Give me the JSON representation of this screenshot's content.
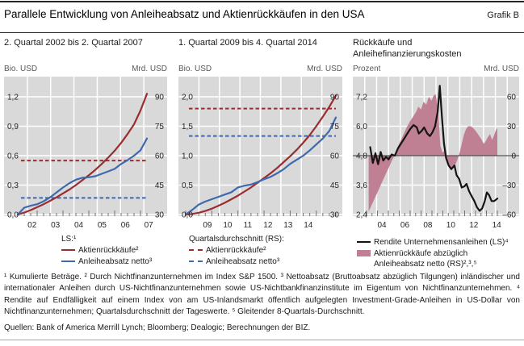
{
  "header": {
    "title": "Parallele Entwicklung von Anleiheabsatz und Aktienrückkäufen in den USA",
    "tag": "Grafik B"
  },
  "colors": {
    "red_line": "#9a2d30",
    "blue_line": "#3e69ad",
    "black_line": "#141414",
    "pink_area": "#c08094",
    "plot_bg": "#d9d9d9",
    "grid": "#ffffff",
    "zero_line": "#4d4d4d",
    "tick_mark": "#737373",
    "tick_text": "#262626"
  },
  "chart_data": [
    {
      "type": "line",
      "subtitle": "2. Quartal 2002 bis 2. Quartal 2007",
      "left_axis": {
        "unit": "Bio. USD",
        "tick_labels": [
          "1,2",
          "0,9",
          "0,6",
          "0,3",
          "0,0"
        ],
        "range": [
          0,
          1.2
        ]
      },
      "right_axis": {
        "unit": "Mrd. USD",
        "tick_labels": [
          "90",
          "75",
          "60",
          "45",
          "30"
        ],
        "range": [
          30,
          90
        ]
      },
      "x_labels": [
        "02",
        "03",
        "04",
        "05",
        "06",
        "07"
      ],
      "x_domain": [
        2002.25,
        2007.25
      ],
      "series": [
        {
          "name": "Aktienrückkäufe (LS, kumuliert)",
          "kind": "line",
          "axis": "left",
          "color": "red_line",
          "x_start": 2002.25,
          "x_step": 0.25,
          "values": [
            0.0,
            0.02,
            0.045,
            0.075,
            0.105,
            0.14,
            0.175,
            0.215,
            0.255,
            0.3,
            0.35,
            0.4,
            0.455,
            0.515,
            0.58,
            0.65,
            0.73,
            0.82,
            0.92,
            1.06,
            1.23
          ]
        },
        {
          "name": "Anleiheabsatz netto (LS, kumuliert)",
          "kind": "line",
          "axis": "left",
          "color": "blue_line",
          "x_start": 2002.25,
          "x_step": 0.25,
          "values": [
            0.0,
            0.07,
            0.09,
            0.105,
            0.135,
            0.175,
            0.225,
            0.275,
            0.32,
            0.355,
            0.375,
            0.38,
            0.39,
            0.415,
            0.44,
            0.465,
            0.515,
            0.555,
            0.6,
            0.655,
            0.775
          ]
        }
      ],
      "avg_lines": [
        {
          "name": "Aktienrückkäufe, Quartalsdurchschnitt (RS)",
          "axis": "right",
          "value": 57.5,
          "color": "red_line"
        },
        {
          "name": "Anleiheabsatz netto, Quartalsdurchschnitt (RS)",
          "axis": "right",
          "value": 38.5,
          "color": "blue_line"
        }
      ]
    },
    {
      "type": "line",
      "subtitle": "1. Quartal 2009 bis 4. Quartal 2014",
      "left_axis": {
        "unit": "Bio. USD",
        "tick_labels": [
          "2,0",
          "1,5",
          "1,0",
          "0,5",
          "0,0"
        ],
        "range": [
          0,
          2.0
        ]
      },
      "right_axis": {
        "unit": "Mrd. USD",
        "tick_labels": [
          "90",
          "75",
          "60",
          "45",
          "30"
        ],
        "range": [
          30,
          90
        ]
      },
      "x_labels": [
        "09",
        "10",
        "11",
        "12",
        "13",
        "14"
      ],
      "x_domain": [
        2009.0,
        2014.75
      ],
      "series": [
        {
          "name": "Aktienrückkäufe (LS, kumuliert)",
          "kind": "line",
          "axis": "left",
          "color": "red_line",
          "x_start": 2009.0,
          "x_step": 0.25,
          "values": [
            0.0,
            0.01,
            0.03,
            0.06,
            0.1,
            0.15,
            0.2,
            0.26,
            0.32,
            0.39,
            0.46,
            0.54,
            0.62,
            0.7,
            0.79,
            0.89,
            0.99,
            1.1,
            1.22,
            1.35,
            1.5,
            1.66,
            1.83,
            2.02
          ]
        },
        {
          "name": "Anleiheabsatz netto (LS, kumuliert)",
          "kind": "line",
          "axis": "left",
          "color": "blue_line",
          "x_start": 2009.0,
          "x_step": 0.25,
          "values": [
            0.0,
            0.08,
            0.17,
            0.22,
            0.26,
            0.3,
            0.34,
            0.38,
            0.46,
            0.49,
            0.51,
            0.55,
            0.6,
            0.64,
            0.7,
            0.77,
            0.86,
            0.93,
            1.0,
            1.09,
            1.19,
            1.29,
            1.42,
            1.65
          ]
        }
      ],
      "avg_lines": [
        {
          "name": "Aktienrückkäufe, Quartalsdurchschnitt (RS)",
          "axis": "right",
          "value": 84,
          "color": "red_line"
        },
        {
          "name": "Anleiheabsatz netto, Quartalsdurchschnitt (RS)",
          "axis": "right",
          "value": 70,
          "color": "blue_line"
        }
      ]
    },
    {
      "type": "line",
      "subtitle": "Rückkäufe und Anleihefinanzierungskosten",
      "left_axis": {
        "unit": "Prozent",
        "tick_labels": [
          "7,2",
          "6,0",
          "4,8",
          "3,6",
          "2,4"
        ],
        "range": [
          2.4,
          7.2
        ]
      },
      "right_axis": {
        "unit": "Mrd. USD",
        "tick_labels": [
          "60",
          "30",
          "0",
          "–30",
          "–60"
        ],
        "range": [
          -60,
          60
        ]
      },
      "x_labels": [
        "04",
        "06",
        "08",
        "10",
        "12",
        "14"
      ],
      "x_domain": [
        2002.5,
        2015.0
      ],
      "zero_line": {
        "axis": "right",
        "value": 0
      },
      "series": [
        {
          "name": "Aktienrückkäufe abzüglich Anleiheabsatz netto (RS)",
          "kind": "area",
          "axis": "right",
          "color": "pink_area",
          "baseline": 0,
          "points": [
            [
              2002.7,
              -57
            ],
            [
              2003.0,
              -50
            ],
            [
              2003.3,
              -43
            ],
            [
              2003.6,
              -36
            ],
            [
              2003.9,
              -29
            ],
            [
              2004.2,
              -22
            ],
            [
              2004.5,
              -15
            ],
            [
              2004.8,
              -8
            ],
            [
              2005.1,
              -1
            ],
            [
              2005.4,
              7
            ],
            [
              2005.7,
              14
            ],
            [
              2006.0,
              21
            ],
            [
              2006.3,
              28
            ],
            [
              2006.6,
              34
            ],
            [
              2006.9,
              39
            ],
            [
              2007.2,
              44
            ],
            [
              2007.45,
              50
            ],
            [
              2007.7,
              47
            ],
            [
              2007.95,
              55
            ],
            [
              2008.2,
              52
            ],
            [
              2008.45,
              60
            ],
            [
              2008.7,
              56
            ],
            [
              2008.9,
              61
            ],
            [
              2009.1,
              63
            ],
            [
              2009.35,
              45
            ],
            [
              2009.55,
              10
            ],
            [
              2009.75,
              3
            ],
            [
              2009.95,
              5
            ],
            [
              2010.15,
              -3
            ],
            [
              2010.4,
              -9
            ],
            [
              2010.65,
              -14
            ],
            [
              2010.9,
              -11
            ],
            [
              2011.15,
              -5
            ],
            [
              2011.4,
              3
            ],
            [
              2011.6,
              12
            ],
            [
              2011.8,
              21
            ],
            [
              2012.0,
              27
            ],
            [
              2012.2,
              30
            ],
            [
              2012.45,
              30
            ],
            [
              2012.7,
              28
            ],
            [
              2012.95,
              25
            ],
            [
              2013.2,
              21
            ],
            [
              2013.45,
              17
            ],
            [
              2013.7,
              12
            ],
            [
              2013.9,
              15
            ],
            [
              2014.1,
              19
            ],
            [
              2014.3,
              22
            ],
            [
              2014.5,
              16
            ],
            [
              2014.7,
              21
            ],
            [
              2014.85,
              26
            ],
            [
              2015.0,
              28
            ]
          ]
        },
        {
          "name": "Rendite Unternehmensanleihen (LS)",
          "kind": "line",
          "axis": "left",
          "color": "black_line",
          "points": [
            [
              2002.85,
              5.15
            ],
            [
              2003.1,
              4.5
            ],
            [
              2003.35,
              4.9
            ],
            [
              2003.6,
              4.45
            ],
            [
              2003.85,
              4.95
            ],
            [
              2004.1,
              4.6
            ],
            [
              2004.35,
              4.75
            ],
            [
              2004.6,
              4.65
            ],
            [
              2004.9,
              4.85
            ],
            [
              2005.2,
              4.8
            ],
            [
              2005.5,
              5.1
            ],
            [
              2005.8,
              5.3
            ],
            [
              2006.1,
              5.5
            ],
            [
              2006.4,
              5.7
            ],
            [
              2006.7,
              5.9
            ],
            [
              2007.0,
              6.05
            ],
            [
              2007.3,
              5.95
            ],
            [
              2007.5,
              5.7
            ],
            [
              2007.75,
              5.8
            ],
            [
              2008.0,
              5.95
            ],
            [
              2008.3,
              5.7
            ],
            [
              2008.55,
              5.6
            ],
            [
              2008.8,
              5.75
            ],
            [
              2009.05,
              6.0
            ],
            [
              2009.3,
              6.6
            ],
            [
              2009.5,
              7.65
            ],
            [
              2009.7,
              6.4
            ],
            [
              2009.9,
              5.3
            ],
            [
              2010.1,
              4.7
            ],
            [
              2010.35,
              4.4
            ],
            [
              2010.6,
              4.25
            ],
            [
              2010.9,
              4.4
            ],
            [
              2011.1,
              4.0
            ],
            [
              2011.35,
              3.85
            ],
            [
              2011.6,
              3.5
            ],
            [
              2011.85,
              3.55
            ],
            [
              2012.05,
              3.65
            ],
            [
              2012.3,
              3.35
            ],
            [
              2012.55,
              3.15
            ],
            [
              2012.8,
              2.95
            ],
            [
              2013.05,
              2.7
            ],
            [
              2013.3,
              2.55
            ],
            [
              2013.55,
              2.65
            ],
            [
              2013.8,
              2.95
            ],
            [
              2014.0,
              3.3
            ],
            [
              2014.2,
              3.2
            ],
            [
              2014.45,
              2.95
            ],
            [
              2014.7,
              2.95
            ],
            [
              2015.0,
              3.05
            ]
          ]
        }
      ]
    }
  ],
  "legend_cumulative": {
    "header": "LS:¹",
    "items": [
      {
        "label": "Aktienrückkäufe²"
      },
      {
        "label": "Anleiheabsatz netto³"
      }
    ]
  },
  "legend_average": {
    "header": "Quartalsdurchschnitt (RS):",
    "items": [
      {
        "label": "Aktienrückkäufe²"
      },
      {
        "label": "Anleiheabsatz netto³"
      }
    ]
  },
  "legend_right_panel": {
    "items": [
      {
        "label": "Rendite Unternehmensanleihen (LS)⁴"
      },
      {
        "label_line1": "Aktienrückkäufe abzüglich",
        "label_line2": "Anleiheabsatz netto (RS)²,³,⁵"
      }
    ]
  },
  "footnote": "¹ Kumulierte Beträge.  ² Durch Nichtfinanzunternehmen im Index S&P 1500.  ³ Nettoabsatz (Bruttoabsatz abzüglich Tilgungen) inländischer und internationaler Anleihen durch US-Nichtfinanzunternehmen sowie US-Nichtbankfinanzinstitute im Eigentum von Nichtfinanzunternehmen.  ⁴ Rendite auf Endfälligkeit auf einem Index von am US-Inlandsmarkt öffentlich aufgelegten Investment-Grade-Anleihen in US-Dollar von Nichtfinanzunternehmen; Quartalsdurchschnitt der Tageswerte.  ⁵ Gleitender 8-Quartals-Durchschnitt.",
  "sources": "Quellen: Bank of America Merrill Lynch; Bloomberg; Dealogic; Berechnungen der BIZ."
}
